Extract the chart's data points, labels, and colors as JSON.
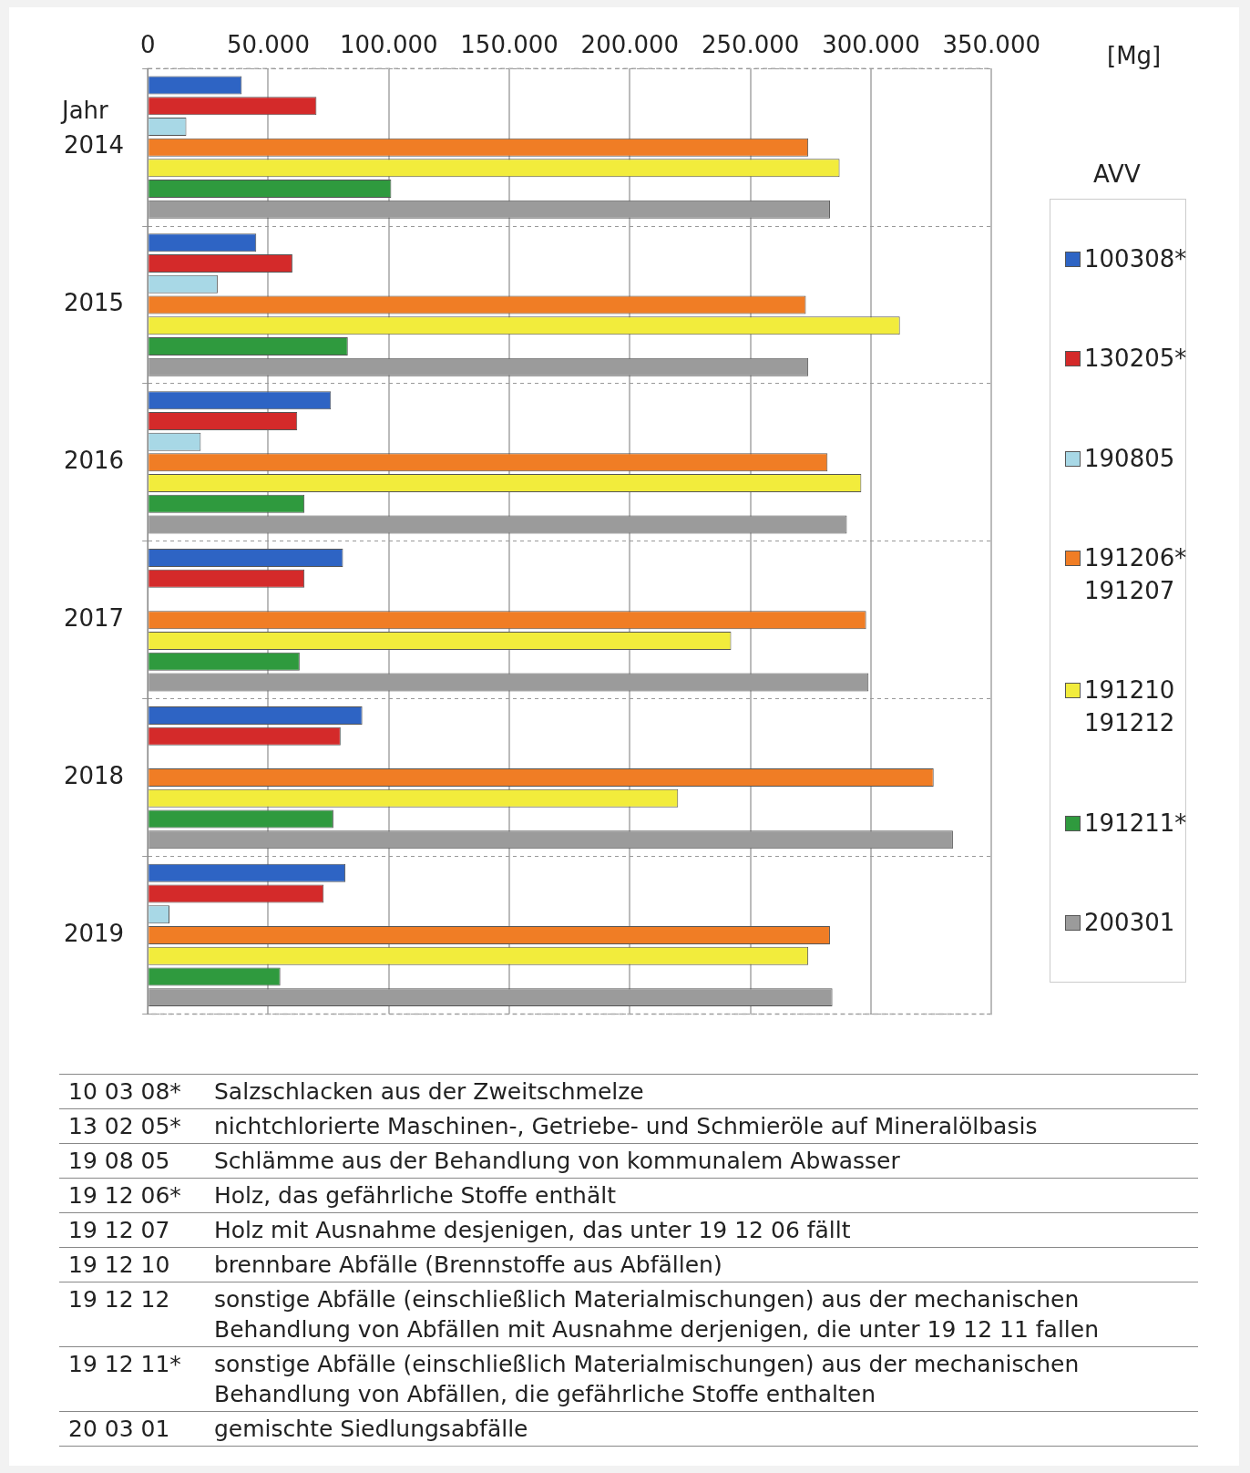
{
  "chart_data": {
    "type": "bar",
    "orientation": "horizontal",
    "ylabel": "Jahr",
    "xlabel": "[Mg]",
    "legend_title": "AVV",
    "legend": "right",
    "grid": true,
    "categories": [
      "2014",
      "2015",
      "2016",
      "2017",
      "2018",
      "2019"
    ],
    "xlim": [
      0,
      350000
    ],
    "xticks": [
      0,
      {
        "value": 50000,
        "label": "50.000"
      },
      {
        "value": 100000,
        "label": "100.000"
      },
      {
        "value": 150000,
        "label": "150.000"
      },
      {
        "value": 200000,
        "label": "200.000"
      },
      {
        "value": 250000,
        "label": "250.000"
      },
      {
        "value": 300000,
        "label": "300.000"
      },
      {
        "value": 350000,
        "label": "350.000"
      }
    ],
    "series": [
      {
        "name": "100308*",
        "color": "#2e64c4",
        "values": [
          39000,
          45000,
          76000,
          81000,
          89000,
          82000
        ]
      },
      {
        "name": "130205*",
        "color": "#d42a2a",
        "values": [
          70000,
          60000,
          62000,
          65000,
          80000,
          73000
        ]
      },
      {
        "name": "190805",
        "color": "#a8d8e6",
        "values": [
          16000,
          29000,
          22000,
          null,
          null,
          9000
        ]
      },
      {
        "name": "191206* 191207",
        "color": "#f07d25",
        "values": [
          274000,
          273000,
          282000,
          298000,
          326000,
          283000
        ]
      },
      {
        "name": "191210 191212",
        "color": "#f2ec3c",
        "values": [
          287000,
          312000,
          296000,
          242000,
          220000,
          274000
        ]
      },
      {
        "name": "191211*",
        "color": "#2f9a3e",
        "values": [
          101000,
          83000,
          65000,
          63000,
          77000,
          55000
        ]
      },
      {
        "name": "200301",
        "color": "#9b9b9b",
        "values": [
          283000,
          274000,
          290000,
          299000,
          334000,
          284000
        ]
      }
    ],
    "annotations": [
      "10 03 08*\tSalzschlacken aus der Zweitschmelze",
      "13 02 05*\tnichtchlorierte Maschinen-, Getriebe- und Schmieröle auf Mineralölbasis",
      "19 08 05\tSchlämme aus der Behandlung von kommunalem Abwasser",
      "19 12 06*\tHolz, das gefährliche Stoffe enthält",
      "19 12 07\tHolz mit Ausnahme desjenigen, das unter 19 12 06 fällt",
      "19 12 10\tbrennbare Abfälle (Brennstoffe aus Abfällen)",
      "19 12 12\tsonstige Abfälle (einschließlich Materialmischungen) aus der mechanischen Behandlung von Abfällen mit Ausnahme derjenigen, die unter 19 12 11 fallen",
      "19 12 11*\tsonstige Abfälle (einschließlich Materialmischungen) aus der mechanischen Behandlung von Abfällen, die gefährliche Stoffe enthalten",
      "20 03 01\tgemischte Siedlungsabfälle"
    ]
  }
}
